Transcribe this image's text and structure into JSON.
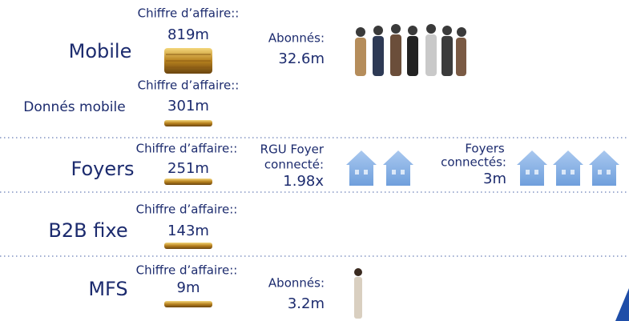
{
  "segments": [
    {
      "name": "Mobile",
      "revenue_label": "Chiffre d’affaire::",
      "revenue": "819m",
      "metric_lines": [
        "Abonnés:",
        "32.6m"
      ]
    },
    {
      "name": "Donnés mobile",
      "revenue_label": "Chiffre d’affaire::",
      "revenue": "301m"
    },
    {
      "name": "Foyers",
      "revenue_label": "Chiffre d’affaire::",
      "revenue": "251m",
      "metric_lines": [
        "RGU Foyer",
        "connecté:",
        "1.98x"
      ],
      "metric2_lines": [
        "Foyers",
        "connectés:",
        "3m"
      ]
    },
    {
      "name": "B2B fixe",
      "revenue_label": "Chiffre d’affaire::",
      "revenue": "143m"
    },
    {
      "name": "MFS",
      "revenue_label": "Chiffre d’affaire::",
      "revenue": "9m",
      "metric_lines": [
        "Abonnés:",
        "3.2m"
      ]
    }
  ]
}
